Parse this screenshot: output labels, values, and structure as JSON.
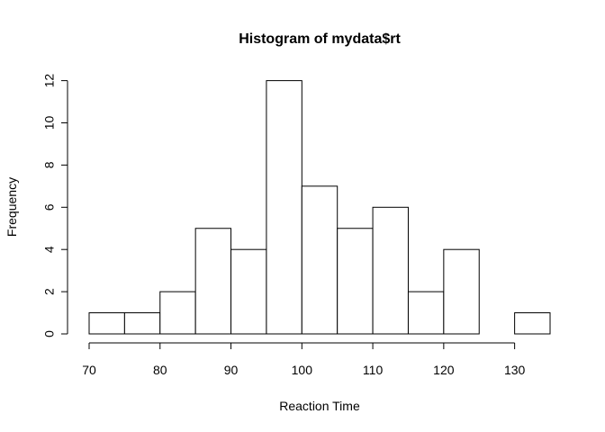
{
  "chart_data": {
    "type": "bar",
    "title": "Histogram of mydata$rt",
    "xlabel": "Reaction Time",
    "ylabel": "Frequency",
    "bins": [
      {
        "start": 70,
        "end": 75,
        "count": 1
      },
      {
        "start": 75,
        "end": 80,
        "count": 1
      },
      {
        "start": 80,
        "end": 85,
        "count": 2
      },
      {
        "start": 85,
        "end": 90,
        "count": 5
      },
      {
        "start": 90,
        "end": 95,
        "count": 4
      },
      {
        "start": 95,
        "end": 100,
        "count": 12
      },
      {
        "start": 100,
        "end": 105,
        "count": 7
      },
      {
        "start": 105,
        "end": 110,
        "count": 5
      },
      {
        "start": 110,
        "end": 115,
        "count": 6
      },
      {
        "start": 115,
        "end": 120,
        "count": 2
      },
      {
        "start": 120,
        "end": 125,
        "count": 4
      },
      {
        "start": 125,
        "end": 130,
        "count": 0
      },
      {
        "start": 130,
        "end": 135,
        "count": 1
      }
    ],
    "xticks": [
      "70",
      "80",
      "90",
      "100",
      "110",
      "120",
      "130"
    ],
    "yticks": [
      "0",
      "2",
      "4",
      "6",
      "8",
      "10",
      "12"
    ],
    "xlim": [
      70,
      135
    ],
    "ylim": [
      0,
      12
    ],
    "grid": false
  }
}
